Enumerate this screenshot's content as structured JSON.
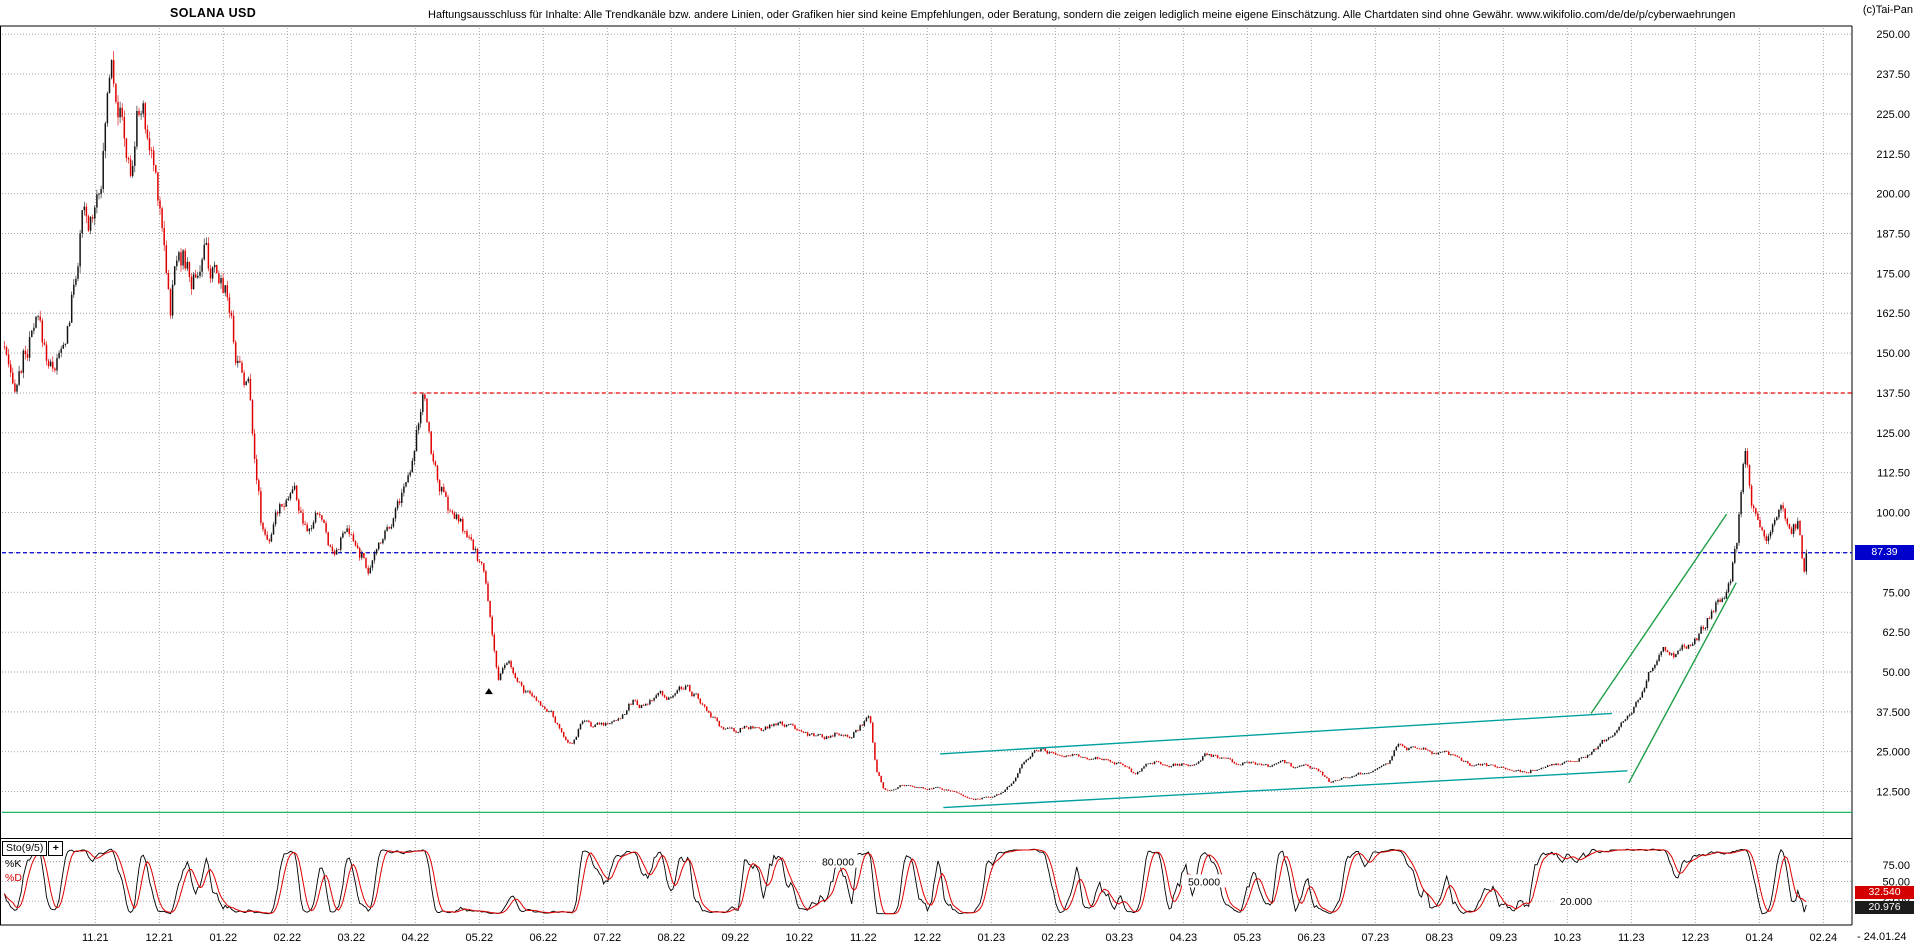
{
  "header": {
    "title": "SOLANA USD",
    "disclaimer": "Haftungsausschluss für Inhalte: Alle Trendkanäle bzw. andere Linien, oder Grafiken hier sind keine Empfehlungen, oder Beratung, sondern die zeigen lediglich meine eigene Einschätzung. Alle Chartdaten sind ohne Gewähr. www.wikifolio.com/de/de/p/cyberwaehrungen",
    "copyright": "(c)Tai-Pan"
  },
  "price_axis": {
    "ticks": [
      {
        "label": "250.00",
        "value": 250
      },
      {
        "label": "237.50",
        "value": 237.5
      },
      {
        "label": "225.00",
        "value": 225
      },
      {
        "label": "212.50",
        "value": 212.5
      },
      {
        "label": "200.00",
        "value": 200
      },
      {
        "label": "187.50",
        "value": 187.5
      },
      {
        "label": "175.00",
        "value": 175
      },
      {
        "label": "162.50",
        "value": 162.5
      },
      {
        "label": "150.00",
        "value": 150
      },
      {
        "label": "137.50",
        "value": 137.5
      },
      {
        "label": "125.00",
        "value": 125
      },
      {
        "label": "112.50",
        "value": 112.5
      },
      {
        "label": "100.00",
        "value": 100
      },
      {
        "label": "87.50",
        "value": 87.5
      },
      {
        "label": "75.00",
        "value": 75
      },
      {
        "label": "62.50",
        "value": 62.5
      },
      {
        "label": "50.00",
        "value": 50
      },
      {
        "label": "37.500",
        "value": 37.5
      },
      {
        "label": "25.000",
        "value": 25
      },
      {
        "label": "12.500",
        "value": 12.5
      }
    ],
    "current_price_label": "87.39",
    "current_price": 87.39
  },
  "x_axis": {
    "month_labels": [
      "11.21",
      "12.21",
      "01.22",
      "02.22",
      "03.22",
      "04.22",
      "05.22",
      "06.22",
      "07.22",
      "08.22",
      "09.22",
      "10.22",
      "11.22",
      "12.22",
      "01.23",
      "02.23",
      "03.23",
      "04.23",
      "05.23",
      "06.23",
      "07.23",
      "08.23",
      "09.23",
      "10.23",
      "11.23",
      "12.23",
      "01.24",
      "02.24"
    ],
    "end_date_label": "- 24.01.24"
  },
  "indicator_panel": {
    "name_label": "Sto(9/5)",
    "expand_button_label": "+",
    "k_label": "%K",
    "d_label": "%D",
    "inline_levels": [
      {
        "label": "80.000",
        "value": 80
      },
      {
        "label": "50.000",
        "value": 50
      },
      {
        "label": "20.000",
        "value": 20
      }
    ],
    "right_tick_labels": [
      {
        "label": "75.00",
        "value": 75
      },
      {
        "label": "50.00",
        "value": 50
      },
      {
        "label": "25.00",
        "value": 25
      }
    ],
    "k_value_label": "32.540",
    "d_value_label": "20.976",
    "k_value": 32.54,
    "d_value": 20.976
  },
  "colors": {
    "up": "#141414",
    "down": "#e00000",
    "grid": "#9a9a9a",
    "current_line": "#0000cc",
    "current_tag_bg": "#0000cc",
    "resistance": "#f00000",
    "support": "#00b050",
    "channel": "#00a0a0",
    "trend": "#1e9e45",
    "k_line": "#000000",
    "d_line": "#e00000",
    "k_tag_bg": "#d40000",
    "d_tag_bg": "#1c1c1c"
  },
  "chart_data": [
    {
      "type": "candlestick",
      "title": "SOLANA USD",
      "x_unit": "months; t=0 corresponds to x-axis label 11.21, t=26.74 is last candle 24.01.24",
      "ylim": [
        0,
        256
      ],
      "y_ticks": [
        250,
        237.5,
        225,
        212.5,
        200,
        187.5,
        175,
        162.5,
        150,
        137.5,
        125,
        112.5,
        100,
        87.5,
        75,
        62.5,
        50,
        37.5,
        25,
        12.5
      ],
      "current_price": 87.39,
      "last_date": "24.01.24",
      "price_path_anchors": [
        [
          -1.42,
          152
        ],
        [
          -1.3,
          136
        ],
        [
          -1.1,
          150
        ],
        [
          -0.9,
          158
        ],
        [
          -0.7,
          146
        ],
        [
          -0.5,
          150
        ],
        [
          -0.35,
          168
        ],
        [
          -0.2,
          192
        ],
        [
          -0.1,
          186
        ],
        [
          0.0,
          200
        ],
        [
          0.12,
          212
        ],
        [
          0.25,
          248
        ],
        [
          0.4,
          224
        ],
        [
          0.55,
          204
        ],
        [
          0.7,
          230
        ],
        [
          0.85,
          214
        ],
        [
          1.0,
          200
        ],
        [
          1.1,
          182
        ],
        [
          1.17,
          164
        ],
        [
          1.3,
          186
        ],
        [
          1.5,
          172
        ],
        [
          1.7,
          182
        ],
        [
          1.9,
          170
        ],
        [
          2.05,
          172
        ],
        [
          2.2,
          150
        ],
        [
          2.4,
          140
        ],
        [
          2.6,
          96
        ],
        [
          2.75,
          92
        ],
        [
          2.9,
          104
        ],
        [
          3.1,
          108
        ],
        [
          3.3,
          92
        ],
        [
          3.5,
          100
        ],
        [
          3.7,
          88
        ],
        [
          3.9,
          94
        ],
        [
          4.1,
          88
        ],
        [
          4.3,
          82
        ],
        [
          4.5,
          94
        ],
        [
          4.7,
          102
        ],
        [
          4.9,
          112
        ],
        [
          5.02,
          128
        ],
        [
          5.12,
          135
        ],
        [
          5.3,
          114
        ],
        [
          5.5,
          101
        ],
        [
          5.7,
          96
        ],
        [
          5.9,
          88
        ],
        [
          6.05,
          83
        ],
        [
          6.18,
          66
        ],
        [
          6.3,
          47
        ],
        [
          6.45,
          53
        ],
        [
          6.6,
          46
        ],
        [
          6.8,
          42
        ],
        [
          6.95,
          40
        ],
        [
          7.1,
          38
        ],
        [
          7.3,
          30
        ],
        [
          7.45,
          27.5
        ],
        [
          7.6,
          34
        ],
        [
          7.8,
          33
        ],
        [
          8.0,
          34
        ],
        [
          8.2,
          36
        ],
        [
          8.4,
          41
        ],
        [
          8.6,
          39
        ],
        [
          8.8,
          43
        ],
        [
          9.0,
          42
        ],
        [
          9.2,
          46
        ],
        [
          9.4,
          42
        ],
        [
          9.6,
          36
        ],
        [
          9.8,
          32
        ],
        [
          10.0,
          31.5
        ],
        [
          10.2,
          33
        ],
        [
          10.4,
          31
        ],
        [
          10.6,
          34
        ],
        [
          10.8,
          33
        ],
        [
          11.0,
          32.5
        ],
        [
          11.2,
          30
        ],
        [
          11.4,
          29.5
        ],
        [
          11.6,
          31
        ],
        [
          11.8,
          30.5
        ],
        [
          11.95,
          33
        ],
        [
          12.1,
          36
        ],
        [
          12.2,
          20
        ],
        [
          12.32,
          13.5
        ],
        [
          12.45,
          13.2
        ],
        [
          12.6,
          14.5
        ],
        [
          12.8,
          13.8
        ],
        [
          13.0,
          13.5
        ],
        [
          13.2,
          13.8
        ],
        [
          13.4,
          12.5
        ],
        [
          13.6,
          11
        ],
        [
          13.72,
          9.8
        ],
        [
          13.85,
          10.5
        ],
        [
          14.0,
          10.8
        ],
        [
          14.15,
          12
        ],
        [
          14.3,
          14.5
        ],
        [
          14.5,
          21
        ],
        [
          14.65,
          25
        ],
        [
          14.8,
          26
        ],
        [
          14.95,
          24.5
        ],
        [
          15.1,
          23
        ],
        [
          15.3,
          24.5
        ],
        [
          15.5,
          22.5
        ],
        [
          15.7,
          23.5
        ],
        [
          15.9,
          22
        ],
        [
          16.1,
          20.5
        ],
        [
          16.25,
          17.8
        ],
        [
          16.45,
          21.5
        ],
        [
          16.6,
          22
        ],
        [
          16.8,
          21
        ],
        [
          17.0,
          21
        ],
        [
          17.2,
          20.5
        ],
        [
          17.35,
          24
        ],
        [
          17.55,
          23
        ],
        [
          17.75,
          22
        ],
        [
          17.95,
          21.5
        ],
        [
          18.15,
          21
        ],
        [
          18.35,
          20
        ],
        [
          18.55,
          21.5
        ],
        [
          18.75,
          19.8
        ],
        [
          18.95,
          20.5
        ],
        [
          19.15,
          18.5
        ],
        [
          19.3,
          15.2
        ],
        [
          19.45,
          16.5
        ],
        [
          19.65,
          17.5
        ],
        [
          19.85,
          18.5
        ],
        [
          20.0,
          19
        ],
        [
          20.2,
          21.5
        ],
        [
          20.35,
          27.5
        ],
        [
          20.5,
          25.5
        ],
        [
          20.7,
          26.5
        ],
        [
          20.9,
          24.5
        ],
        [
          21.1,
          24.5
        ],
        [
          21.3,
          23
        ],
        [
          21.5,
          21
        ],
        [
          21.7,
          20.5
        ],
        [
          21.9,
          20.3
        ],
        [
          22.1,
          19.5
        ],
        [
          22.3,
          18.3
        ],
        [
          22.5,
          19.5
        ],
        [
          22.7,
          20.5
        ],
        [
          22.9,
          21.5
        ],
        [
          23.1,
          22
        ],
        [
          23.3,
          23.5
        ],
        [
          23.5,
          27
        ],
        [
          23.7,
          31
        ],
        [
          23.9,
          35
        ],
        [
          24.05,
          40
        ],
        [
          24.2,
          44
        ],
        [
          24.35,
          53
        ],
        [
          24.5,
          57
        ],
        [
          24.65,
          55
        ],
        [
          24.8,
          59
        ],
        [
          24.95,
          60
        ],
        [
          25.1,
          63
        ],
        [
          25.25,
          69
        ],
        [
          25.4,
          74
        ],
        [
          25.55,
          79
        ],
        [
          25.65,
          90
        ],
        [
          25.77,
          117
        ],
        [
          25.88,
          100
        ],
        [
          26.0,
          96
        ],
        [
          26.1,
          88
        ],
        [
          26.2,
          96
        ],
        [
          26.35,
          100
        ],
        [
          26.5,
          95
        ],
        [
          26.6,
          98
        ],
        [
          26.7,
          82
        ],
        [
          26.74,
          87.39
        ]
      ],
      "annotations": {
        "horizontal_lines": [
          {
            "name": "resistance",
            "price": 137.5,
            "t_start": 4.96,
            "t_end": 27.45,
            "color": "resistance",
            "dash": true
          },
          {
            "name": "current-price",
            "price": 87.39,
            "t_start": -1.46,
            "t_end": 27.45,
            "color": "current_line",
            "dash": true
          },
          {
            "name": "support",
            "price": 6.0,
            "t_start": -1.46,
            "t_end": 27.45,
            "color": "support",
            "dash": false
          }
        ],
        "trend_lines": [
          {
            "name": "teal-channel-upper",
            "from": [
              13.2,
              24.3
            ],
            "to": [
              23.7,
              37.0
            ],
            "color": "channel"
          },
          {
            "name": "teal-channel-lower",
            "from": [
              13.25,
              7.5
            ],
            "to": [
              23.94,
              19.0
            ],
            "color": "channel"
          },
          {
            "name": "green-trend-upper",
            "from": [
              23.37,
              37.0
            ],
            "to": [
              25.49,
              99.5
            ],
            "color": "trend"
          },
          {
            "name": "green-trend-lower",
            "from": [
              23.96,
              15.2
            ],
            "to": [
              25.64,
              78.0
            ],
            "color": "trend"
          }
        ],
        "marker": {
          "t": 6.15,
          "price": 44,
          "shape": "triangle-up"
        }
      }
    },
    {
      "type": "line",
      "name": "Stochastic Sto(9/5)",
      "series": [
        {
          "name": "%K",
          "color": "k_line",
          "last_value": 32.54
        },
        {
          "name": "%D",
          "color": "d_line",
          "last_value": 20.976
        }
      ],
      "levels": [
        80,
        50,
        20
      ],
      "ylim": [
        0,
        100
      ],
      "derived_from": "candles: 9-period stochastic, smoothed; %D = moving average of %K"
    }
  ]
}
